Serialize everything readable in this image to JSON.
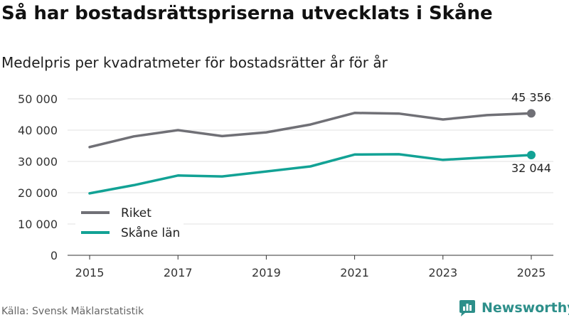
{
  "header": {
    "title": "Så har bostadsrättspriserna utvecklats i Skåne",
    "subtitle": "Medelpris per kvadratmeter för bostadsrätter år för år"
  },
  "footer": {
    "source": "Källa: Svensk Mäklarstatistik",
    "brand": "Newsworthy"
  },
  "colors": {
    "riket": "#707076",
    "skane": "#12a295",
    "grid": "#e2e2e2",
    "brand": "#2d8f8a"
  },
  "chart_data": {
    "type": "line",
    "title": "Så har bostadsrättspriserna utvecklats i Skåne",
    "subtitle": "Medelpris per kvadratmeter för bostadsrätter år för år",
    "xlabel": "",
    "ylabel": "",
    "x": [
      2015,
      2016,
      2017,
      2018,
      2019,
      2020,
      2021,
      2022,
      2023,
      2024,
      2025
    ],
    "xlim": [
      2014.5,
      2025.5
    ],
    "ylim": [
      0,
      50000
    ],
    "x_ticks": [
      "2015",
      "2017",
      "2019",
      "2021",
      "2023",
      "2025"
    ],
    "y_ticks": [
      "0",
      "10 000",
      "20 000",
      "30 000",
      "40 000",
      "50 000"
    ],
    "grid": true,
    "legend": "bottom-left",
    "series": [
      {
        "name": "Riket",
        "color": "#707076",
        "values": [
          34600,
          38000,
          40000,
          38100,
          39300,
          41800,
          45500,
          45300,
          43400,
          44800,
          45356
        ],
        "end_label": "45 356"
      },
      {
        "name": "Skåne län",
        "color": "#12a295",
        "values": [
          19800,
          22400,
          25500,
          25200,
          26800,
          28400,
          32200,
          32300,
          30500,
          31300,
          32044
        ],
        "end_label": "32 044"
      }
    ]
  }
}
